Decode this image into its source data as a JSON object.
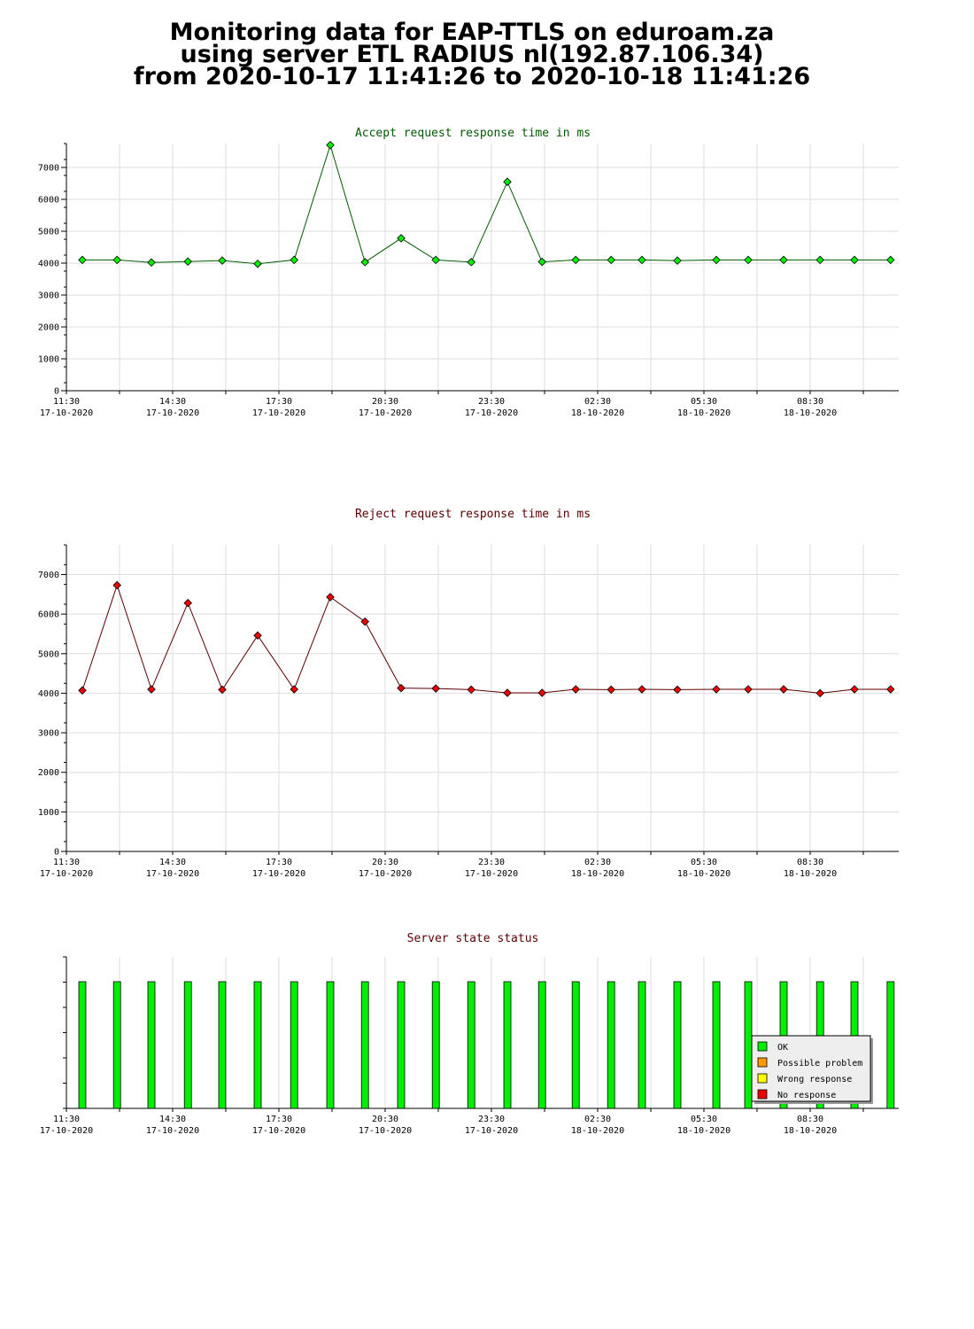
{
  "page": {
    "title_lines": [
      "Monitoring data for EAP-TTLS on eduroam.za",
      "using server ETL RADIUS nl(192.87.106.34)",
      "from 2020-10-17 11:41:26 to 2020-10-18 11:41:26"
    ]
  },
  "chart_data": [
    {
      "type": "line",
      "title": "Accept request response time in ms",
      "title_color": "#005a00",
      "marker_color": "#00ee00",
      "line_color": "#005a00",
      "x_ticks": [
        {
          "time": "11:30",
          "date": "17-10-2020"
        },
        {
          "time": "14:30",
          "date": "17-10-2020"
        },
        {
          "time": "17:30",
          "date": "17-10-2020"
        },
        {
          "time": "20:30",
          "date": "17-10-2020"
        },
        {
          "time": "23:30",
          "date": "17-10-2020"
        },
        {
          "time": "02:30",
          "date": "18-10-2020"
        },
        {
          "time": "05:30",
          "date": "18-10-2020"
        },
        {
          "time": "08:30",
          "date": "18-10-2020"
        }
      ],
      "y_ticks": [
        0,
        1000,
        2000,
        3000,
        4000,
        5000,
        6000,
        7000
      ],
      "ylim": [
        0,
        7750
      ],
      "xlim_hours": [
        11.5,
        35.0
      ],
      "x_hours": [
        11.95,
        12.93,
        13.9,
        14.93,
        15.9,
        16.9,
        17.93,
        18.95,
        19.93,
        20.95,
        21.93,
        22.93,
        23.95,
        24.93,
        25.88,
        26.88,
        27.75,
        28.75,
        29.85,
        30.75,
        31.75,
        32.78,
        33.75,
        34.77
      ],
      "values": [
        4100,
        4100,
        4020,
        4050,
        4080,
        3980,
        4100,
        7700,
        4030,
        4780,
        4100,
        4030,
        6550,
        4040,
        4100,
        4100,
        4100,
        4080,
        4100,
        4100,
        4100,
        4100,
        4100,
        4100
      ]
    },
    {
      "type": "line",
      "title": "Reject request response time in ms",
      "title_color": "#5a0000",
      "marker_color": "#ee0000",
      "line_color": "#5a0000",
      "x_ticks": [
        {
          "time": "11:30",
          "date": "17-10-2020"
        },
        {
          "time": "14:30",
          "date": "17-10-2020"
        },
        {
          "time": "17:30",
          "date": "17-10-2020"
        },
        {
          "time": "20:30",
          "date": "17-10-2020"
        },
        {
          "time": "23:30",
          "date": "17-10-2020"
        },
        {
          "time": "02:30",
          "date": "18-10-2020"
        },
        {
          "time": "05:30",
          "date": "18-10-2020"
        },
        {
          "time": "08:30",
          "date": "18-10-2020"
        }
      ],
      "y_ticks": [
        0,
        1000,
        2000,
        3000,
        4000,
        5000,
        6000,
        7000
      ],
      "ylim": [
        0,
        7750
      ],
      "xlim_hours": [
        11.5,
        35.0
      ],
      "x_hours": [
        11.95,
        12.93,
        13.9,
        14.93,
        15.9,
        16.9,
        17.93,
        18.95,
        19.93,
        20.95,
        21.93,
        22.93,
        23.95,
        24.93,
        25.88,
        26.88,
        27.75,
        28.75,
        29.85,
        30.75,
        31.75,
        32.78,
        33.75,
        34.77
      ],
      "values": [
        4070,
        6730,
        4100,
        6280,
        4090,
        5460,
        4100,
        6430,
        5810,
        4130,
        4120,
        4090,
        4010,
        4010,
        4100,
        4090,
        4100,
        4090,
        4100,
        4100,
        4100,
        4000,
        4100,
        4100
      ]
    },
    {
      "type": "bar",
      "title": "Server state status",
      "title_color": "#5a0000",
      "x_ticks": [
        {
          "time": "11:30",
          "date": "17-10-2020"
        },
        {
          "time": "14:30",
          "date": "17-10-2020"
        },
        {
          "time": "17:30",
          "date": "17-10-2020"
        },
        {
          "time": "20:30",
          "date": "17-10-2020"
        },
        {
          "time": "23:30",
          "date": "17-10-2020"
        },
        {
          "time": "02:30",
          "date": "18-10-2020"
        },
        {
          "time": "05:30",
          "date": "18-10-2020"
        },
        {
          "time": "08:30",
          "date": "18-10-2020"
        }
      ],
      "xlim_hours": [
        11.5,
        35.0
      ],
      "x_hours": [
        11.95,
        12.93,
        13.9,
        14.93,
        15.9,
        16.9,
        17.93,
        18.95,
        19.93,
        20.95,
        21.93,
        22.93,
        23.95,
        24.93,
        25.88,
        26.88,
        27.75,
        28.75,
        29.85,
        30.75,
        31.75,
        32.78,
        33.75,
        34.77
      ],
      "states": [
        "OK",
        "OK",
        "OK",
        "OK",
        "OK",
        "OK",
        "OK",
        "OK",
        "OK",
        "OK",
        "OK",
        "OK",
        "OK",
        "OK",
        "OK",
        "OK",
        "OK",
        "OK",
        "OK",
        "OK",
        "OK",
        "OK",
        "OK",
        "OK"
      ],
      "legend": [
        {
          "label": "OK",
          "color": "#00ee00"
        },
        {
          "label": "Possible problem",
          "color": "#ff9900"
        },
        {
          "label": "Wrong response",
          "color": "#ffff00"
        },
        {
          "label": "No response",
          "color": "#ee0000"
        }
      ],
      "legend_position": "bottom-right"
    }
  ]
}
